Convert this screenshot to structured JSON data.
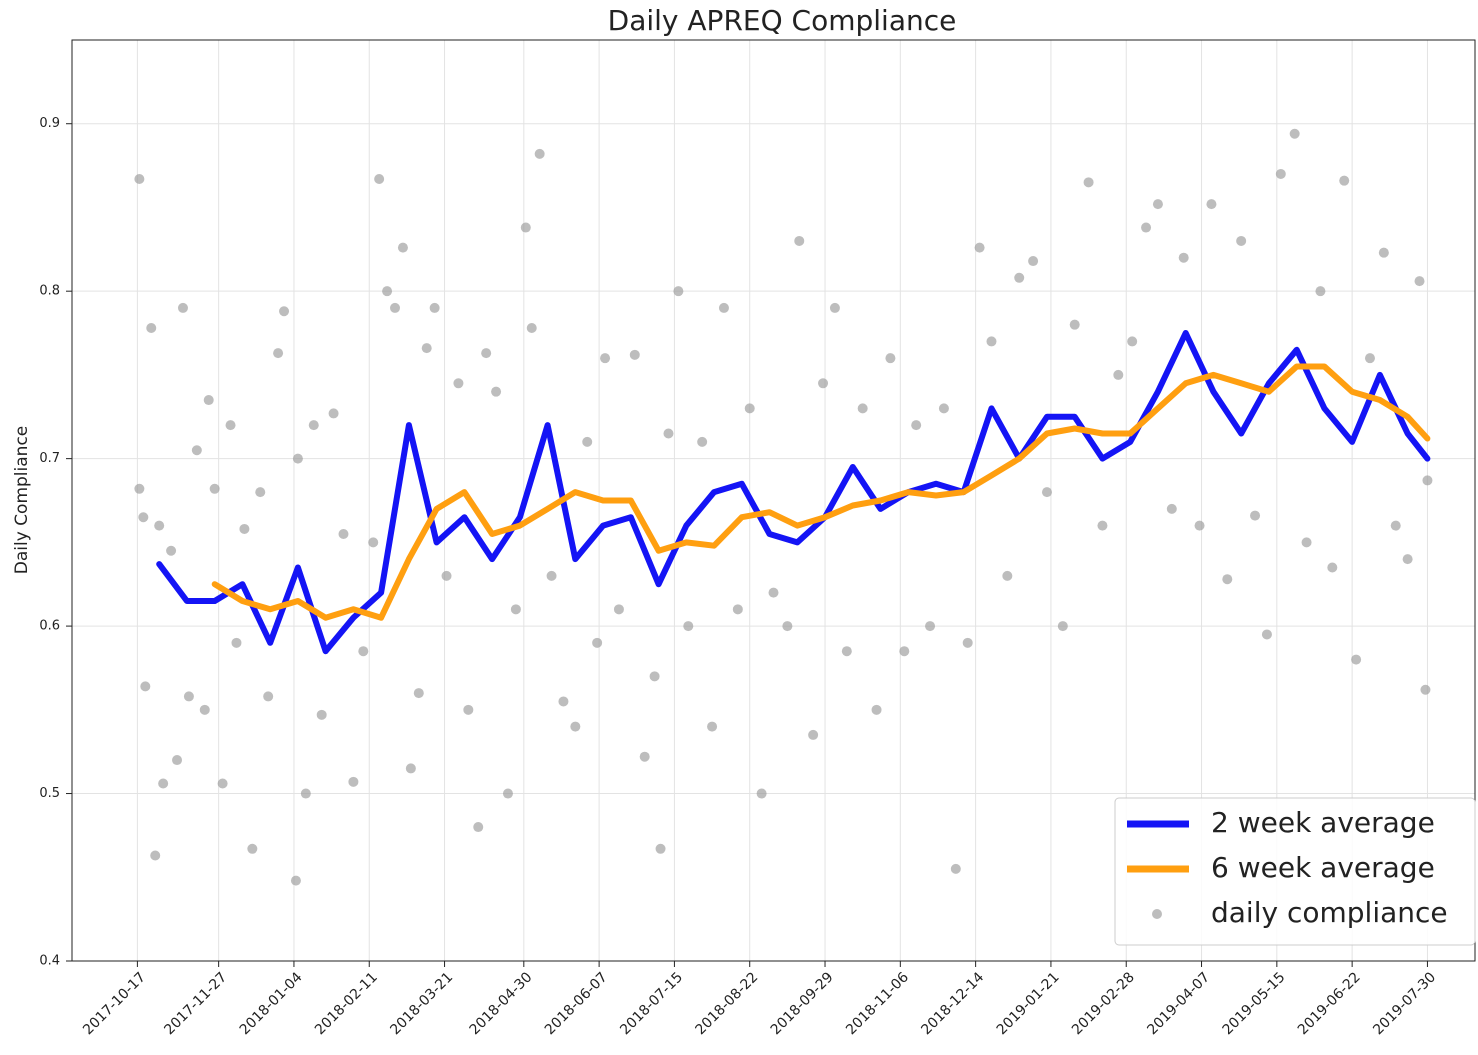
{
  "chart_data": {
    "type": "line",
    "title": "Daily APREQ Compliance",
    "y_label": "Daily Compliance",
    "xlim": [
      "2017-09-14",
      "2019-08-23"
    ],
    "ylim": [
      0.4,
      0.95
    ],
    "xticks": [
      "2017-10-17",
      "2017-11-27",
      "2018-01-04",
      "2018-02-11",
      "2018-03-21",
      "2018-04-30",
      "2018-06-07",
      "2018-07-15",
      "2018-08-22",
      "2018-09-29",
      "2018-11-06",
      "2018-12-14",
      "2019-01-21",
      "2019-02-28",
      "2019-04-07",
      "2019-05-15",
      "2019-06-22",
      "2019-07-30"
    ],
    "yticks": [
      0.4,
      0.5,
      0.6,
      0.7,
      0.8,
      0.9
    ],
    "grid": true,
    "legend": "lower right",
    "x": [
      "2017-10-28",
      "2017-11-11",
      "2017-11-25",
      "2017-12-09",
      "2017-12-23",
      "2018-01-06",
      "2018-01-20",
      "2018-02-03",
      "2018-02-17",
      "2018-03-03",
      "2018-03-17",
      "2018-03-31",
      "2018-04-14",
      "2018-04-28",
      "2018-05-12",
      "2018-05-26",
      "2018-06-09",
      "2018-06-23",
      "2018-07-07",
      "2018-07-21",
      "2018-08-04",
      "2018-08-18",
      "2018-09-01",
      "2018-09-15",
      "2018-09-29",
      "2018-10-13",
      "2018-10-27",
      "2018-11-10",
      "2018-11-24",
      "2018-12-08",
      "2018-12-22",
      "2019-01-05",
      "2019-01-19",
      "2019-02-02",
      "2019-02-16",
      "2019-03-02",
      "2019-03-16",
      "2019-03-30",
      "2019-04-13",
      "2019-04-27",
      "2019-05-11",
      "2019-05-25",
      "2019-06-08",
      "2019-06-22",
      "2019-07-06",
      "2019-07-20",
      "2019-07-30"
    ],
    "series": [
      {
        "name": "2 week average",
        "color": "#1414f5",
        "values": [
          0.637,
          0.615,
          0.615,
          0.625,
          0.59,
          0.635,
          0.585,
          0.605,
          0.62,
          0.72,
          0.65,
          0.665,
          0.64,
          0.665,
          0.72,
          0.64,
          0.66,
          0.665,
          0.625,
          0.66,
          0.68,
          0.685,
          0.655,
          0.65,
          0.665,
          0.695,
          0.67,
          0.68,
          0.685,
          0.68,
          0.73,
          0.7,
          0.725,
          0.725,
          0.7,
          0.71,
          0.74,
          0.775,
          0.74,
          0.715,
          0.745,
          0.765,
          0.73,
          0.71,
          0.75,
          0.715,
          0.7
        ]
      },
      {
        "name": "6 week average",
        "color": "#ff9f10",
        "values": [
          null,
          null,
          0.625,
          0.615,
          0.61,
          0.615,
          0.605,
          0.61,
          0.605,
          0.64,
          0.67,
          0.68,
          0.655,
          0.66,
          0.67,
          0.68,
          0.675,
          0.675,
          0.645,
          0.65,
          0.648,
          0.665,
          0.668,
          0.66,
          0.665,
          0.672,
          0.675,
          0.68,
          0.678,
          0.68,
          0.69,
          0.7,
          0.715,
          0.718,
          0.715,
          0.715,
          0.73,
          0.745,
          0.75,
          0.745,
          0.74,
          0.755,
          0.755,
          0.74,
          0.735,
          0.725,
          0.712
        ]
      },
      {
        "name": "daily compliance",
        "type": "scatter",
        "color": "#999999",
        "x": [
          "2017-10-18",
          "2017-10-18",
          "2017-10-20",
          "2017-10-21",
          "2017-10-24",
          "2017-10-26",
          "2017-10-28",
          "2017-10-30",
          "2017-11-03",
          "2017-11-06",
          "2017-11-09",
          "2017-11-12",
          "2017-11-16",
          "2017-11-20",
          "2017-11-22",
          "2017-11-25",
          "2017-11-29",
          "2017-12-03",
          "2017-12-06",
          "2017-12-10",
          "2017-12-14",
          "2017-12-18",
          "2017-12-22",
          "2017-12-27",
          "2017-12-30",
          "2018-01-05",
          "2018-01-06",
          "2018-01-10",
          "2018-01-14",
          "2018-01-18",
          "2018-01-24",
          "2018-01-29",
          "2018-02-03",
          "2018-02-08",
          "2018-02-13",
          "2018-02-16",
          "2018-02-20",
          "2018-02-24",
          "2018-02-28",
          "2018-03-04",
          "2018-03-08",
          "2018-03-12",
          "2018-03-16",
          "2018-03-22",
          "2018-03-28",
          "2018-04-02",
          "2018-04-07",
          "2018-04-11",
          "2018-04-16",
          "2018-04-22",
          "2018-04-26",
          "2018-05-01",
          "2018-05-04",
          "2018-05-08",
          "2018-05-14",
          "2018-05-20",
          "2018-05-26",
          "2018-06-01",
          "2018-06-06",
          "2018-06-10",
          "2018-06-17",
          "2018-06-25",
          "2018-06-30",
          "2018-07-05",
          "2018-07-08",
          "2018-07-12",
          "2018-07-17",
          "2018-07-22",
          "2018-07-29",
          "2018-08-03",
          "2018-08-09",
          "2018-08-16",
          "2018-08-22",
          "2018-08-28",
          "2018-09-03",
          "2018-09-10",
          "2018-09-16",
          "2018-09-23",
          "2018-09-28",
          "2018-10-04",
          "2018-10-10",
          "2018-10-18",
          "2018-10-25",
          "2018-11-01",
          "2018-11-08",
          "2018-11-14",
          "2018-11-21",
          "2018-11-28",
          "2018-12-04",
          "2018-12-10",
          "2018-12-16",
          "2018-12-22",
          "2018-12-30",
          "2019-01-05",
          "2019-01-12",
          "2019-01-19",
          "2019-01-27",
          "2019-02-02",
          "2019-02-09",
          "2019-02-16",
          "2019-02-24",
          "2019-03-03",
          "2019-03-10",
          "2019-03-16",
          "2019-03-23",
          "2019-03-29",
          "2019-04-06",
          "2019-04-12",
          "2019-04-20",
          "2019-04-27",
          "2019-05-04",
          "2019-05-10",
          "2019-05-17",
          "2019-05-24",
          "2019-05-30",
          "2019-06-06",
          "2019-06-12",
          "2019-06-18",
          "2019-06-24",
          "2019-07-01",
          "2019-07-08",
          "2019-07-14",
          "2019-07-20",
          "2019-07-26",
          "2019-07-29",
          "2019-07-30"
        ],
        "values": [
          0.867,
          0.682,
          0.665,
          0.564,
          0.778,
          0.463,
          0.66,
          0.506,
          0.645,
          0.52,
          0.79,
          0.558,
          0.705,
          0.55,
          0.735,
          0.682,
          0.506,
          0.72,
          0.59,
          0.658,
          0.467,
          0.68,
          0.558,
          0.763,
          0.788,
          0.448,
          0.7,
          0.5,
          0.72,
          0.547,
          0.727,
          0.655,
          0.507,
          0.585,
          0.65,
          0.867,
          0.8,
          0.79,
          0.826,
          0.515,
          0.56,
          0.766,
          0.79,
          0.63,
          0.745,
          0.55,
          0.48,
          0.763,
          0.74,
          0.5,
          0.61,
          0.838,
          0.778,
          0.882,
          0.63,
          0.555,
          0.54,
          0.71,
          0.59,
          0.76,
          0.61,
          0.762,
          0.522,
          0.57,
          0.467,
          0.715,
          0.8,
          0.6,
          0.71,
          0.54,
          0.79,
          0.61,
          0.73,
          0.5,
          0.62,
          0.6,
          0.83,
          0.535,
          0.745,
          0.79,
          0.585,
          0.73,
          0.55,
          0.76,
          0.585,
          0.72,
          0.6,
          0.73,
          0.455,
          0.59,
          0.826,
          0.77,
          0.63,
          0.808,
          0.818,
          0.68,
          0.6,
          0.78,
          0.865,
          0.66,
          0.75,
          0.77,
          0.838,
          0.852,
          0.67,
          0.82,
          0.66,
          0.852,
          0.628,
          0.83,
          0.666,
          0.595,
          0.87,
          0.894,
          0.65,
          0.8,
          0.635,
          0.866,
          0.58,
          0.76,
          0.823,
          0.66,
          0.64,
          0.806,
          0.562,
          0.687
        ]
      }
    ]
  }
}
